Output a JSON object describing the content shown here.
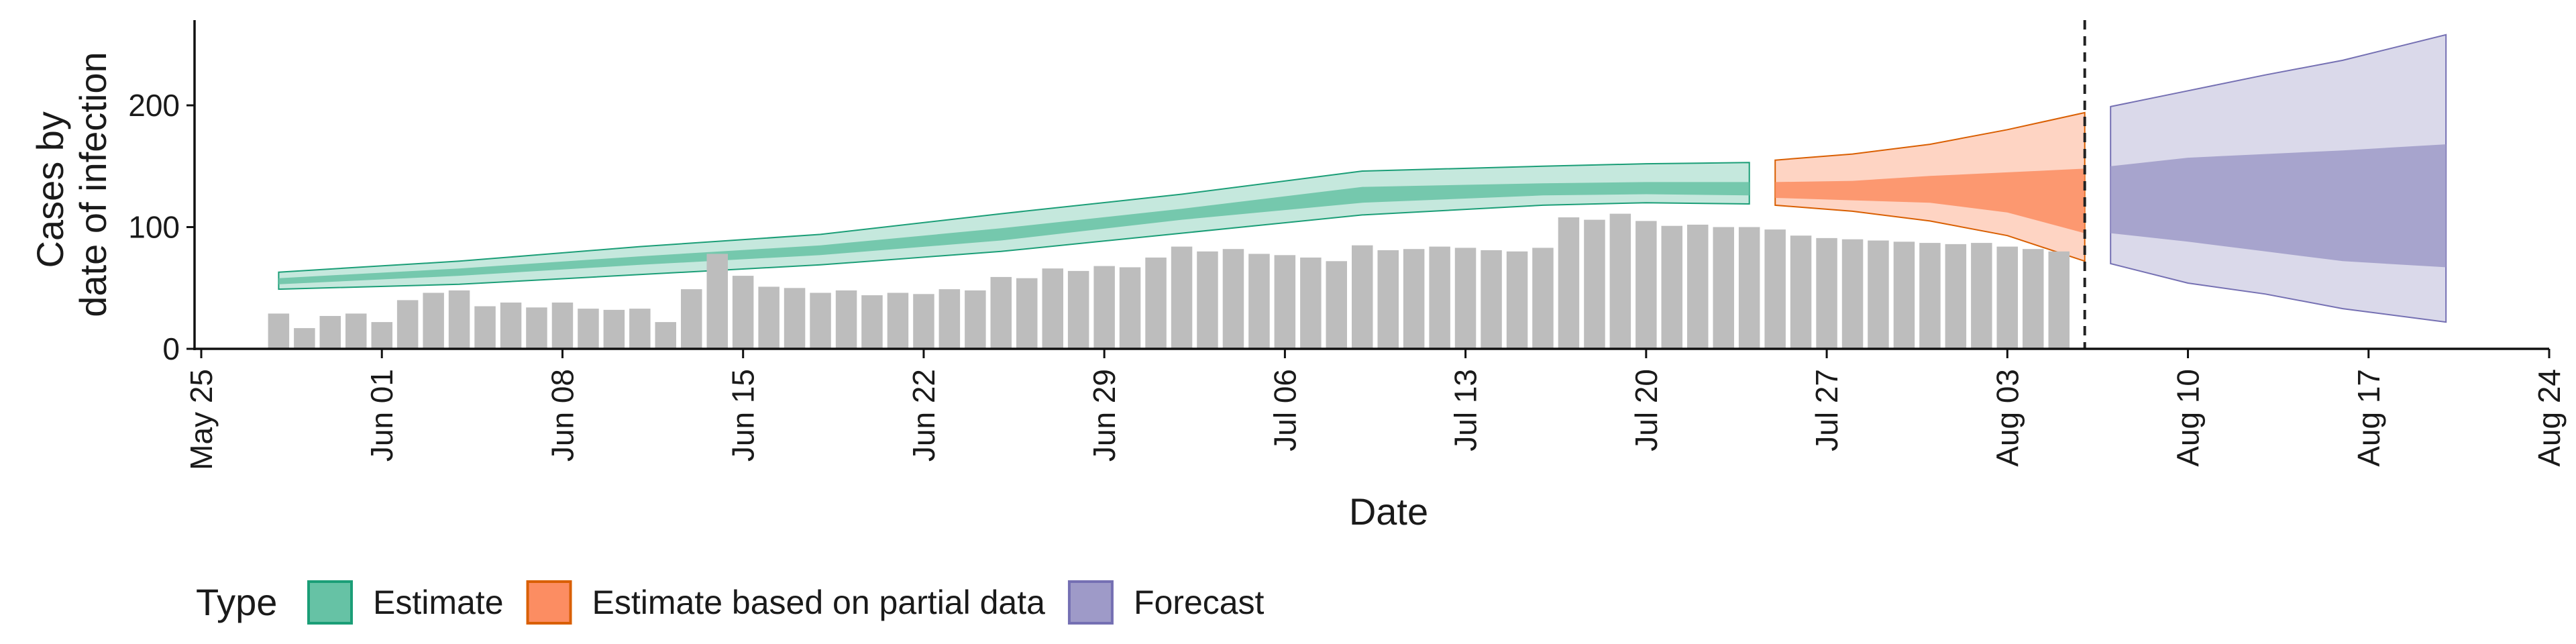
{
  "chart_data": {
    "type": "area",
    "title": "",
    "xlabel": "Date",
    "ylabel_lines": [
      "Cases by",
      "date of infection"
    ],
    "ylim": [
      0,
      270
    ],
    "y_ticks": [
      0,
      100,
      200
    ],
    "x_domain": [
      "2020-05-25",
      "2020-08-24"
    ],
    "x_ticks": [
      {
        "date": "2020-05-25",
        "label": "May 25"
      },
      {
        "date": "2020-06-01",
        "label": "Jun 01"
      },
      {
        "date": "2020-06-08",
        "label": "Jun 08"
      },
      {
        "date": "2020-06-15",
        "label": "Jun 15"
      },
      {
        "date": "2020-06-22",
        "label": "Jun 22"
      },
      {
        "date": "2020-06-29",
        "label": "Jun 29"
      },
      {
        "date": "2020-07-06",
        "label": "Jul 06"
      },
      {
        "date": "2020-07-13",
        "label": "Jul 13"
      },
      {
        "date": "2020-07-20",
        "label": "Jul 20"
      },
      {
        "date": "2020-07-27",
        "label": "Jul 27"
      },
      {
        "date": "2020-08-03",
        "label": "Aug 03"
      },
      {
        "date": "2020-08-10",
        "label": "Aug 10"
      },
      {
        "date": "2020-08-17",
        "label": "Aug 17"
      },
      {
        "date": "2020-08-24",
        "label": "Aug 24"
      }
    ],
    "vline_date": "2020-08-06",
    "legend": {
      "title": "Type",
      "position": "bottom",
      "entries": [
        {
          "label": "Estimate",
          "fill": "#66C2A5",
          "stroke": "#1B9E77"
        },
        {
          "label": "Estimate based on partial data",
          "fill": "#FC8D62",
          "stroke": "#D95F02"
        },
        {
          "label": "Forecast",
          "fill": "#9E9AC8",
          "stroke": "#7570B3"
        }
      ]
    },
    "bars": {
      "color": "#BDBDBD",
      "start_date": "2020-05-28",
      "values": [
        29,
        17,
        27,
        29,
        22,
        40,
        46,
        48,
        35,
        38,
        34,
        38,
        33,
        32,
        33,
        22,
        49,
        78,
        60,
        51,
        50,
        46,
        48,
        44,
        46,
        45,
        49,
        48,
        59,
        58,
        66,
        64,
        68,
        67,
        75,
        84,
        80,
        82,
        78,
        77,
        75,
        72,
        85,
        81,
        82,
        84,
        83,
        81,
        80,
        83,
        108,
        106,
        111,
        105,
        101,
        102,
        100,
        100,
        98,
        93,
        91,
        90,
        89,
        88,
        87,
        86,
        87,
        84,
        82,
        80
      ]
    },
    "series": [
      {
        "name": "Estimate",
        "fill": "#66C2A5",
        "stroke": "#1B9E77",
        "dates": [
          "2020-05-28",
          "2020-06-04",
          "2020-06-11",
          "2020-06-18",
          "2020-06-25",
          "2020-07-02",
          "2020-07-09",
          "2020-07-16",
          "2020-07-20",
          "2020-07-24"
        ],
        "lower90": [
          49,
          53,
          61,
          69,
          80,
          95,
          110,
          118,
          120,
          119
        ],
        "lower50": [
          53,
          60,
          69,
          77,
          89,
          106,
          120,
          126,
          127,
          126
        ],
        "upper50": [
          58,
          66,
          76,
          85,
          99,
          115,
          133,
          136,
          137,
          137
        ],
        "upper90": [
          63,
          72,
          84,
          94,
          111,
          127,
          146,
          150,
          152,
          153
        ]
      },
      {
        "name": "Estimate based on partial data",
        "fill": "#FC8D62",
        "stroke": "#D95F02",
        "dates": [
          "2020-07-25",
          "2020-07-28",
          "2020-07-31",
          "2020-08-03",
          "2020-08-06"
        ],
        "lower90": [
          118,
          113,
          105,
          93,
          72
        ],
        "lower50": [
          124,
          122,
          120,
          112,
          95
        ],
        "upper50": [
          137,
          138,
          142,
          145,
          148
        ],
        "upper90": [
          155,
          160,
          168,
          180,
          194
        ]
      },
      {
        "name": "Forecast",
        "fill": "#9E9AC8",
        "stroke": "#7570B3",
        "dates": [
          "2020-08-07",
          "2020-08-10",
          "2020-08-13",
          "2020-08-16",
          "2020-08-20"
        ],
        "lower90": [
          70,
          54,
          45,
          33,
          22
        ],
        "lower50": [
          95,
          88,
          80,
          72,
          67
        ],
        "upper50": [
          150,
          157,
          160,
          163,
          168
        ],
        "upper90": [
          199,
          212,
          225,
          237,
          258
        ]
      }
    ]
  }
}
